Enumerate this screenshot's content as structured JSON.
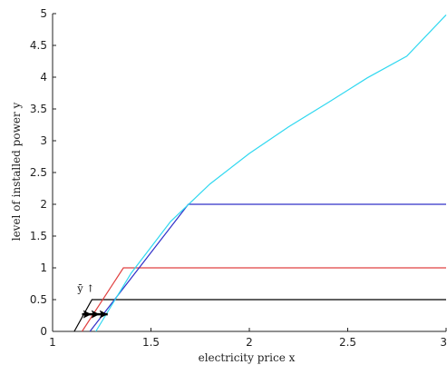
{
  "chart_data": {
    "type": "line",
    "title": "",
    "xlabel": "electricity price x",
    "ylabel": "level of installed power y",
    "xlim": [
      1,
      3
    ],
    "ylim": [
      0,
      5
    ],
    "x_ticks": [
      "1",
      "1.5",
      "2",
      "2.5",
      "3"
    ],
    "y_ticks": [
      "0",
      "0.5",
      "1",
      "1.5",
      "2",
      "2.5",
      "3",
      "3.5",
      "4",
      "4.5",
      "5"
    ],
    "grid": false,
    "legend": "none",
    "annotation": {
      "text": "ȳ ↑",
      "x": 1.17,
      "y": 0.62
    },
    "arrow": {
      "from": [
        1.15,
        0.27
      ],
      "to": [
        1.28,
        0.27
      ],
      "color": "#000000"
    },
    "series": [
      {
        "color": "#000000",
        "x": [
          1.11,
          1.2,
          3.0
        ],
        "y": [
          0,
          0.5,
          0.5
        ]
      },
      {
        "color": "#e04040",
        "x": [
          1.15,
          1.36,
          3.0
        ],
        "y": [
          0,
          1.0,
          1.0
        ]
      },
      {
        "color": "#3030c8",
        "x": [
          1.19,
          1.69,
          3.0
        ],
        "y": [
          0,
          2.0,
          2.0
        ]
      },
      {
        "color": "#30d8f0",
        "x": [
          1.22,
          1.4,
          1.6,
          1.8,
          2.0,
          2.2,
          2.4,
          2.6,
          2.8,
          3.0
        ],
        "y": [
          0,
          0.92,
          1.73,
          2.32,
          2.8,
          3.22,
          3.6,
          3.99,
          4.33,
          4.98
        ]
      }
    ]
  }
}
